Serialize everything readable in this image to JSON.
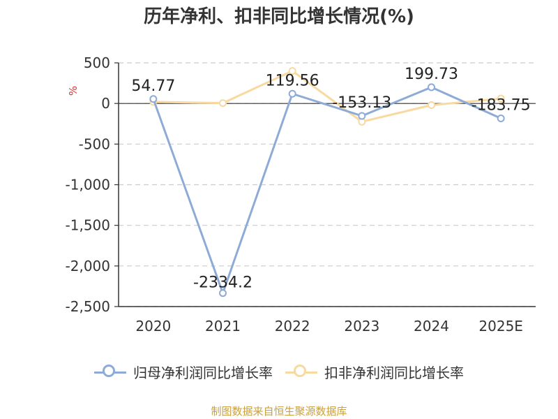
{
  "chart_data": {
    "type": "line",
    "title": "历年净利、扣非同比增长情况(%)",
    "xlabel": "",
    "ylabel": "%",
    "categories": [
      "2020",
      "2021",
      "2022",
      "2023",
      "2024",
      "2025E"
    ],
    "ylim": [
      -2500,
      500
    ],
    "yticks": [
      500,
      0,
      -500,
      -1000,
      -1500,
      -2000,
      -2500
    ],
    "ytick_labels": [
      "500",
      "0",
      "-500",
      "-1,000",
      "-1,500",
      "-2,000",
      "-2,500"
    ],
    "grid": true,
    "legend_position": "bottom",
    "series": [
      {
        "name": "归母净利润同比增长率",
        "color": "#8eabd8",
        "values": [
          54.77,
          -2334.2,
          119.56,
          -153.13,
          199.73,
          -183.75
        ],
        "labels": [
          "54.77",
          "-2334.2",
          "119.56",
          "-153.13",
          "199.73",
          "-183.75"
        ]
      },
      {
        "name": "扣非净利润同比增长率",
        "color": "#f8d9a0",
        "values": [
          20,
          5,
          400,
          -225,
          -20,
          60
        ]
      }
    ]
  },
  "source_note": "制图数据来自恒生聚源数据库"
}
